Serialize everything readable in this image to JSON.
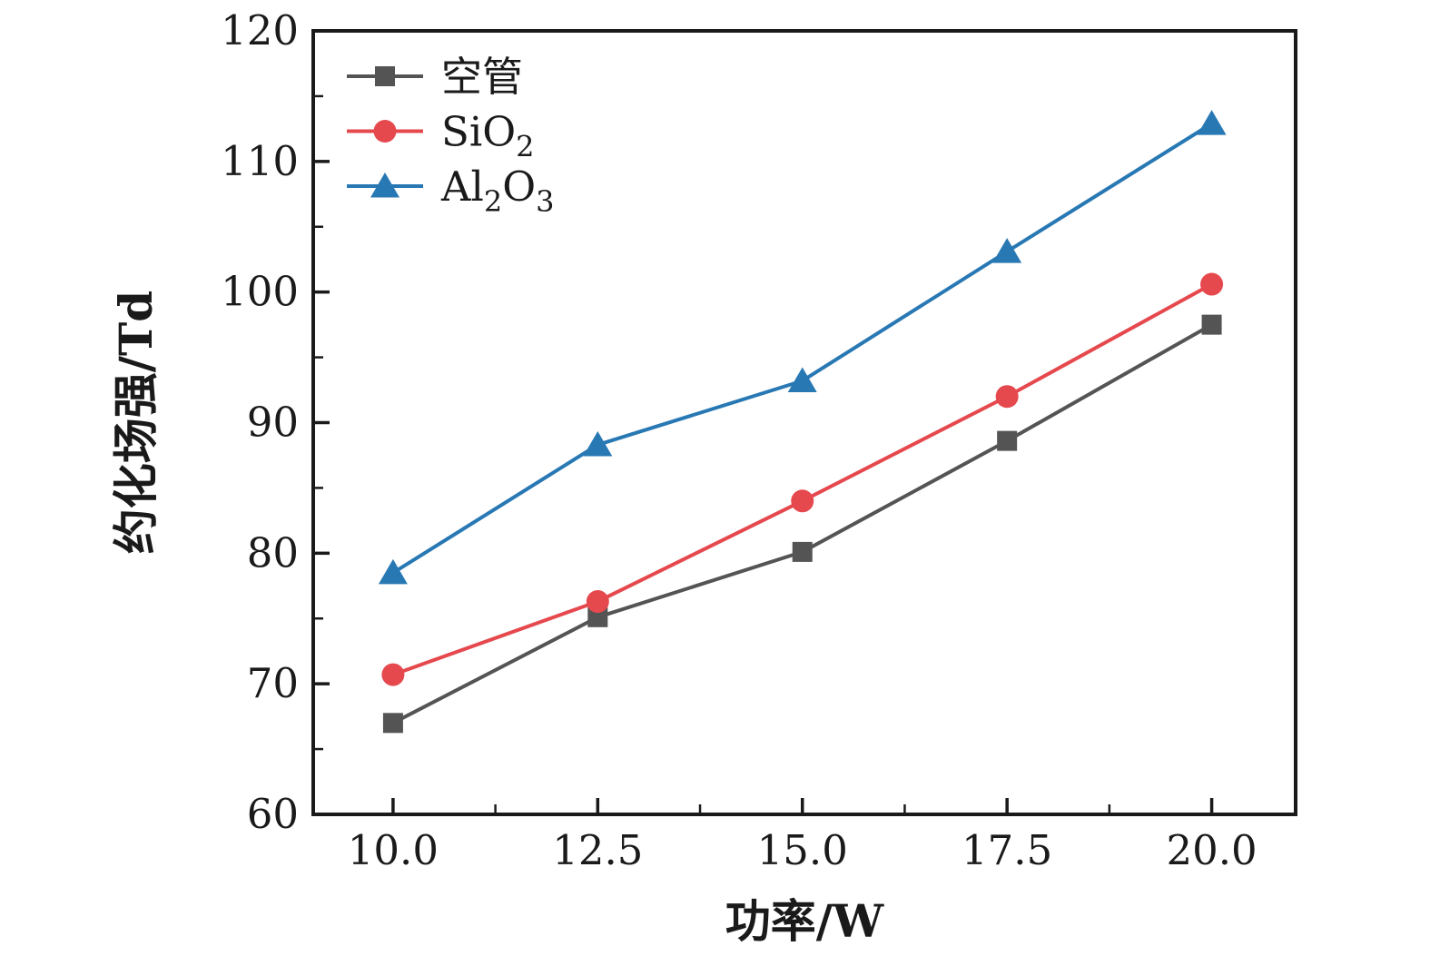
{
  "chart_data": {
    "type": "line",
    "x": [
      10.0,
      12.5,
      15.0,
      17.5,
      20.0
    ],
    "xlabel": "功率/W",
    "ylabel": "约化场强/Td",
    "xlim": [
      9.025,
      21.025
    ],
    "ylim": [
      60,
      120
    ],
    "x_major_ticks": [
      10.0,
      12.5,
      15.0,
      17.5,
      20.0
    ],
    "x_tick_labels": [
      "10.0",
      "12.5",
      "15.0",
      "17.5",
      "20.0"
    ],
    "x_minor_ticks": [
      11.25,
      13.75,
      16.25,
      18.75
    ],
    "y_major_ticks": [
      60,
      70,
      80,
      90,
      100,
      110,
      120
    ],
    "y_tick_labels": [
      "60",
      "70",
      "80",
      "90",
      "100",
      "110",
      "120"
    ],
    "y_minor_ticks": [
      65,
      75,
      85,
      95,
      105,
      115
    ],
    "grid": false,
    "legend_position": "upper-left",
    "frame_color": "#1a1a1a",
    "text_color": "#1a1a1a",
    "series": [
      {
        "name": "kongguan",
        "display_name": "空管",
        "label_parts": [
          {
            "t": "空管",
            "sub": false
          }
        ],
        "color": "#545454",
        "marker": "square",
        "values": [
          67.0,
          75.1,
          80.1,
          88.6,
          97.5
        ]
      },
      {
        "name": "SiO2",
        "display_name": "SiO2",
        "label_parts": [
          {
            "t": "SiO",
            "sub": false
          },
          {
            "t": "2",
            "sub": true
          }
        ],
        "color": "#e5484d",
        "marker": "circle",
        "values": [
          70.7,
          76.3,
          84.0,
          92.0,
          100.6
        ]
      },
      {
        "name": "Al2O3",
        "display_name": "Al2O3",
        "label_parts": [
          {
            "t": "Al",
            "sub": false
          },
          {
            "t": "2",
            "sub": true
          },
          {
            "t": "O",
            "sub": false
          },
          {
            "t": "3",
            "sub": true
          }
        ],
        "color": "#2878b4",
        "marker": "triangle",
        "values": [
          78.5,
          88.3,
          93.2,
          103.1,
          112.9
        ]
      }
    ]
  }
}
